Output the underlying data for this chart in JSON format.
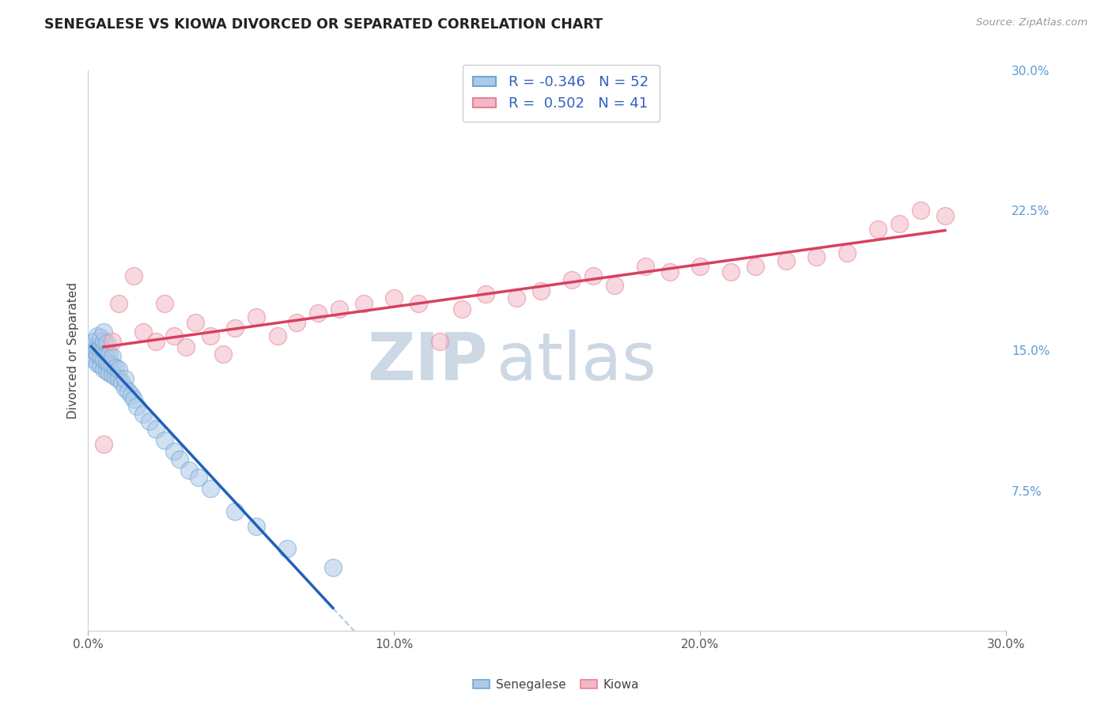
{
  "title": "SENEGALESE VS KIOWA DIVORCED OR SEPARATED CORRELATION CHART",
  "source_text": "Source: ZipAtlas.com",
  "ylabel": "Divorced or Separated",
  "xlim": [
    0.0,
    0.3
  ],
  "ylim": [
    0.0,
    0.3
  ],
  "x_ticks": [
    0.0,
    0.1,
    0.2,
    0.3
  ],
  "x_tick_labels": [
    "0.0%",
    "10.0%",
    "20.0%",
    "30.0%"
  ],
  "y_ticks_right": [
    0.075,
    0.15,
    0.225,
    0.3
  ],
  "y_tick_labels_right": [
    "7.5%",
    "15.0%",
    "22.5%",
    "30.0%"
  ],
  "grid_color": "#c8c8c8",
  "background_color": "#ffffff",
  "watermark_color": "#ccd8e4",
  "senegalese_R": -0.346,
  "senegalese_N": 52,
  "kiowa_R": 0.502,
  "kiowa_N": 41,
  "senegalese_dot_facecolor": "#aec9e8",
  "senegalese_dot_edgecolor": "#6fa8d4",
  "kiowa_dot_facecolor": "#f2b8c4",
  "kiowa_dot_edgecolor": "#e8809a",
  "senegalese_line_color": "#2060b8",
  "kiowa_line_color": "#d84060",
  "legend_label_senegalese": "Senegalese",
  "legend_label_kiowa": "Kiowa",
  "senegalese_x": [
    0.001,
    0.001,
    0.002,
    0.002,
    0.002,
    0.003,
    0.003,
    0.003,
    0.003,
    0.004,
    0.004,
    0.004,
    0.004,
    0.005,
    0.005,
    0.005,
    0.005,
    0.005,
    0.006,
    0.006,
    0.006,
    0.006,
    0.007,
    0.007,
    0.007,
    0.008,
    0.008,
    0.008,
    0.009,
    0.009,
    0.01,
    0.01,
    0.011,
    0.012,
    0.012,
    0.013,
    0.014,
    0.015,
    0.016,
    0.018,
    0.02,
    0.022,
    0.025,
    0.028,
    0.03,
    0.033,
    0.036,
    0.04,
    0.048,
    0.055,
    0.065,
    0.08
  ],
  "senegalese_y": [
    0.148,
    0.152,
    0.145,
    0.15,
    0.155,
    0.143,
    0.148,
    0.152,
    0.158,
    0.142,
    0.147,
    0.152,
    0.157,
    0.14,
    0.145,
    0.15,
    0.155,
    0.16,
    0.139,
    0.144,
    0.149,
    0.154,
    0.138,
    0.143,
    0.148,
    0.137,
    0.142,
    0.147,
    0.136,
    0.141,
    0.135,
    0.14,
    0.133,
    0.13,
    0.135,
    0.128,
    0.126,
    0.124,
    0.12,
    0.116,
    0.112,
    0.108,
    0.102,
    0.096,
    0.092,
    0.086,
    0.082,
    0.076,
    0.064,
    0.056,
    0.044,
    0.034
  ],
  "kiowa_x": [
    0.005,
    0.008,
    0.01,
    0.015,
    0.018,
    0.022,
    0.025,
    0.028,
    0.032,
    0.035,
    0.04,
    0.044,
    0.048,
    0.055,
    0.062,
    0.068,
    0.075,
    0.082,
    0.09,
    0.1,
    0.108,
    0.115,
    0.122,
    0.13,
    0.14,
    0.148,
    0.158,
    0.165,
    0.172,
    0.182,
    0.19,
    0.2,
    0.21,
    0.218,
    0.228,
    0.238,
    0.248,
    0.258,
    0.265,
    0.272,
    0.28
  ],
  "kiowa_y": [
    0.1,
    0.155,
    0.175,
    0.19,
    0.16,
    0.155,
    0.175,
    0.158,
    0.152,
    0.165,
    0.158,
    0.148,
    0.162,
    0.168,
    0.158,
    0.165,
    0.17,
    0.172,
    0.175,
    0.178,
    0.175,
    0.155,
    0.172,
    0.18,
    0.178,
    0.182,
    0.188,
    0.19,
    0.185,
    0.195,
    0.192,
    0.195,
    0.192,
    0.195,
    0.198,
    0.2,
    0.202,
    0.215,
    0.218,
    0.225,
    0.222
  ]
}
